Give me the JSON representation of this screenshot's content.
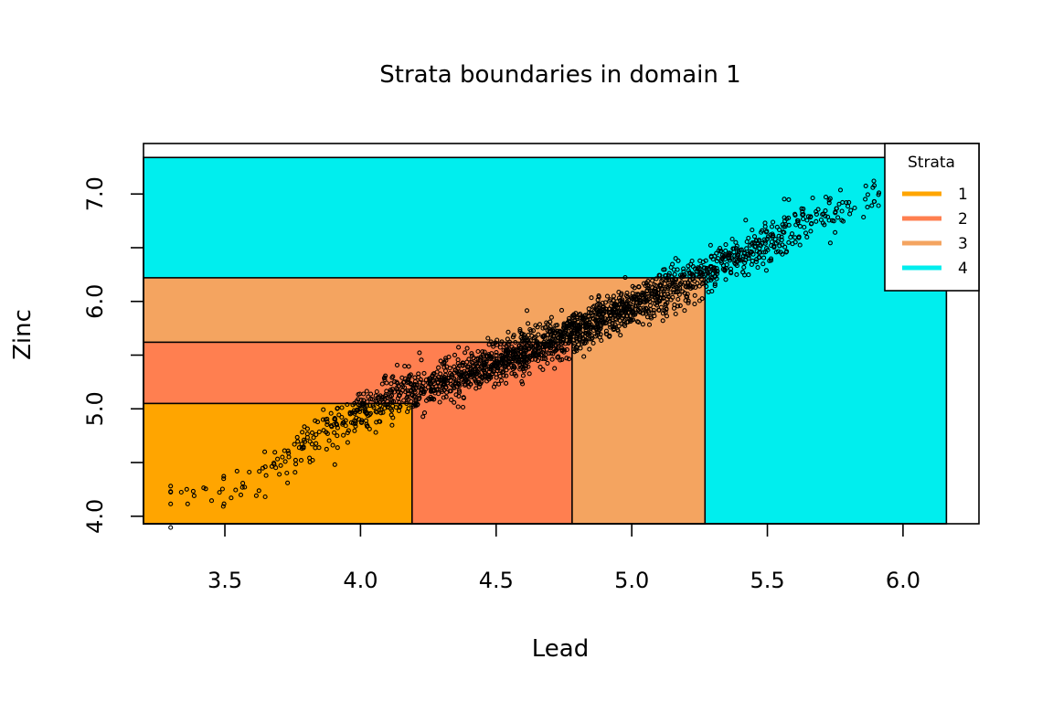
{
  "chart_data": {
    "type": "scatter",
    "title": "Strata boundaries in domain 1",
    "xlabel": "Lead",
    "ylabel": "Zinc",
    "xlim": [
      3.2,
      6.28
    ],
    "ylim": [
      3.93,
      7.47
    ],
    "x_ticks": [
      3.5,
      4.0,
      4.5,
      5.0,
      5.5,
      6.0
    ],
    "x_tick_labels": [
      "3.5",
      "4.0",
      "4.5",
      "5.0",
      "5.5",
      "6.0"
    ],
    "y_ticks": [
      4.0,
      4.5,
      5.0,
      5.5,
      6.0,
      6.5,
      7.0
    ],
    "y_tick_labels": [
      "4.0",
      "",
      "5.0",
      "",
      "6.0",
      "",
      "7.0"
    ],
    "grid": false,
    "legend": {
      "title": "Strata",
      "position": "top-right",
      "entries": [
        {
          "label": "1",
          "color": "#FFA500"
        },
        {
          "label": "2",
          "color": "#FF7F50"
        },
        {
          "label": "3",
          "color": "#F4A460"
        },
        {
          "label": "4",
          "color": "#00EEEE"
        }
      ]
    },
    "strata": [
      {
        "stratum": "1",
        "color": "#FFA500",
        "x_range": [
          3.2,
          4.19
        ],
        "y_range": [
          3.93,
          5.05
        ]
      },
      {
        "stratum": "2",
        "color": "#FF7F50",
        "x_range": [
          3.2,
          4.78
        ],
        "y_range": [
          3.93,
          5.62
        ]
      },
      {
        "stratum": "3",
        "color": "#F4A460",
        "x_range": [
          3.2,
          5.27
        ],
        "y_range": [
          3.93,
          6.22
        ]
      },
      {
        "stratum": "4",
        "color": "#00EEEE",
        "x_range": [
          3.2,
          6.16
        ],
        "y_range": [
          3.93,
          7.34
        ]
      }
    ],
    "scatter_trend": [
      {
        "x": 3.3,
        "y": 4.07
      },
      {
        "x": 3.5,
        "y": 4.25
      },
      {
        "x": 3.7,
        "y": 4.5
      },
      {
        "x": 3.9,
        "y": 4.85
      },
      {
        "x": 4.1,
        "y": 5.1
      },
      {
        "x": 4.3,
        "y": 5.25
      },
      {
        "x": 4.5,
        "y": 5.42
      },
      {
        "x": 4.7,
        "y": 5.62
      },
      {
        "x": 4.9,
        "y": 5.85
      },
      {
        "x": 5.1,
        "y": 6.05
      },
      {
        "x": 5.3,
        "y": 6.3
      },
      {
        "x": 5.5,
        "y": 6.55
      },
      {
        "x": 5.7,
        "y": 6.8
      },
      {
        "x": 5.9,
        "y": 7.05
      },
      {
        "x": 6.0,
        "y": 7.15
      },
      {
        "x": 6.15,
        "y": 7.33
      }
    ],
    "scatter_spread": 0.1,
    "n_points": 2000
  }
}
